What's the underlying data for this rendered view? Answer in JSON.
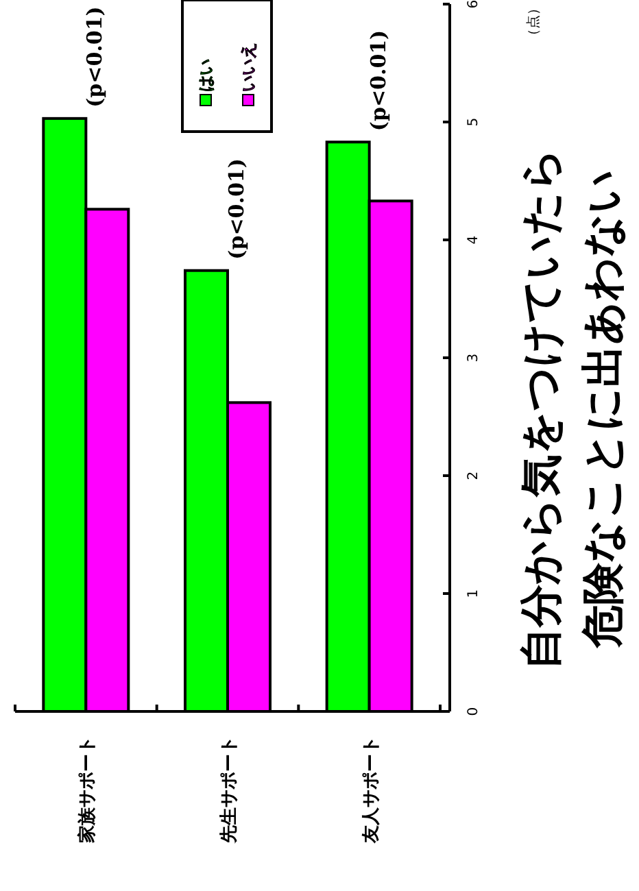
{
  "chart_data": {
    "type": "bar",
    "title": "自分から気をつけていたら危険なことに出あわない",
    "ylabel": "（点）",
    "categories": [
      "家族サポート",
      "先生サポート",
      "友人サポート"
    ],
    "series": [
      {
        "name": "はい",
        "color": "#00ff00",
        "values": [
          5.03,
          3.74,
          4.83
        ]
      },
      {
        "name": "いいえ",
        "color": "#ff00ff",
        "values": [
          4.26,
          2.62,
          4.33
        ]
      }
    ],
    "ylim": [
      0,
      6
    ],
    "yticks": [
      0,
      1,
      2,
      3,
      4,
      5,
      6
    ],
    "grid": false,
    "legend": "top",
    "annotations": [
      {
        "text": "(p<0.01)",
        "x": "家族サポート",
        "y": 5.03
      },
      {
        "text": "(p<0.01)",
        "x": "先生サポート",
        "y": 3.74
      },
      {
        "text": "(p<0.01)",
        "x": "友人サポート",
        "y": 4.83
      }
    ]
  }
}
